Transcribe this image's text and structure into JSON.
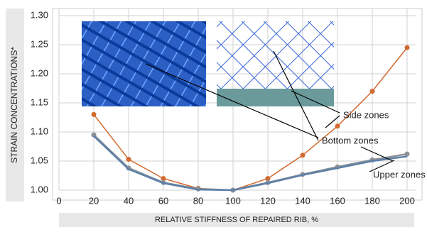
{
  "chart_data": {
    "type": "line",
    "x_label": "RELATIVE STIFFNESS OF REPAIRED RIB, %",
    "y_label": "STRAIN CONCENTRATIONS*",
    "x": [
      20,
      40,
      60,
      80,
      100,
      120,
      140,
      160,
      180,
      200
    ],
    "series": [
      {
        "name": "Side zones",
        "color": "#d2692f",
        "values": [
          1.13,
          1.053,
          1.02,
          1.003,
          1.0,
          1.02,
          1.06,
          1.11,
          1.17,
          1.245
        ]
      },
      {
        "name": "Bottom zones",
        "color": "#8c9196",
        "values": [
          1.095,
          1.038,
          1.013,
          1.002,
          1.0,
          1.013,
          1.027,
          1.04,
          1.052,
          1.062
        ]
      },
      {
        "name": "Upper zones",
        "color": "#5b7fa8",
        "values": [
          1.093,
          1.036,
          1.012,
          1.001,
          1.0,
          1.012,
          1.026,
          1.038,
          1.05,
          1.058
        ]
      }
    ],
    "xlim": [
      0,
      200
    ],
    "ylim": [
      1.0,
      1.3
    ],
    "xticks": [
      0,
      20,
      40,
      60,
      80,
      100,
      120,
      140,
      160,
      180,
      200
    ],
    "yticks": [
      {
        "value": 1.0,
        "label": "1.00"
      },
      {
        "value": 1.05,
        "label": "1.05"
      },
      {
        "value": 1.1,
        "label": "1.10"
      },
      {
        "value": 1.15,
        "label": "1.15"
      },
      {
        "value": 1.2,
        "label": "1.20"
      },
      {
        "value": 1.25,
        "label": "1.25"
      },
      {
        "value": 1.3,
        "label": "1.30"
      }
    ],
    "grid": true
  }
}
